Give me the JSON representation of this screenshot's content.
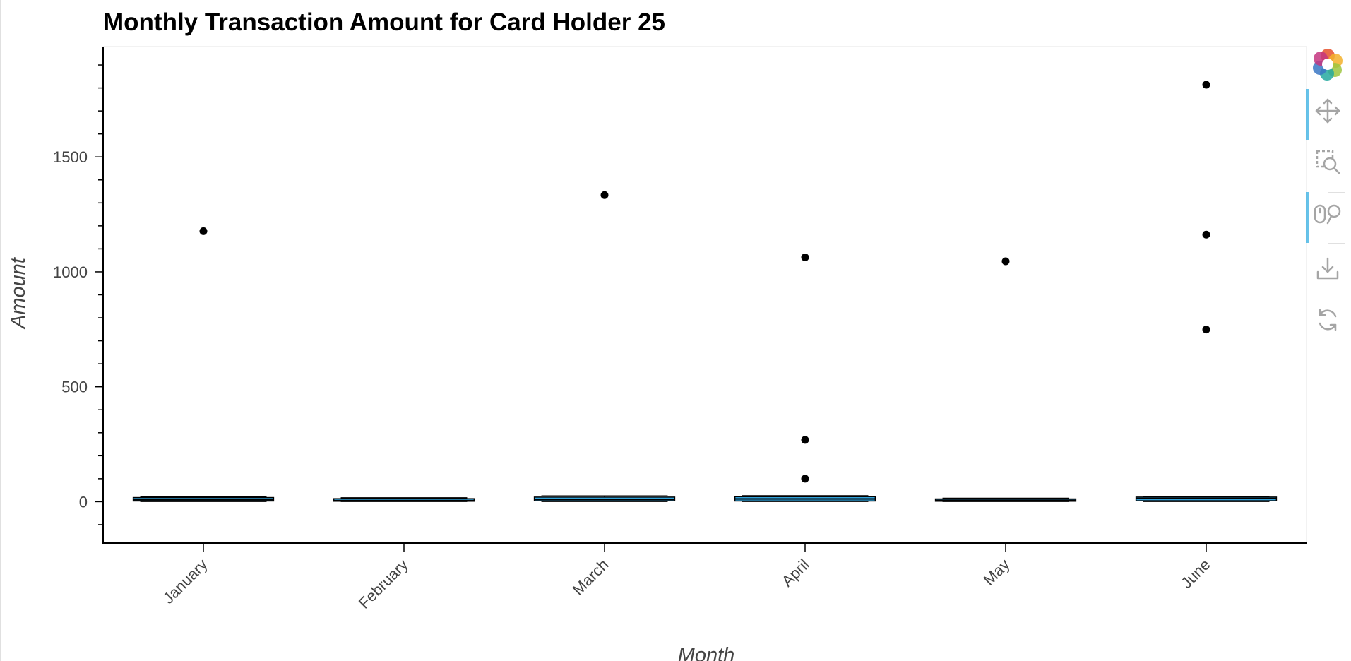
{
  "chart_data": {
    "type": "box",
    "title": "Monthly Transaction Amount for Card Holder 25",
    "xlabel": "Month",
    "ylabel": "Amount",
    "categories": [
      "January",
      "February",
      "March",
      "April",
      "May",
      "June"
    ],
    "boxes": [
      {
        "category": "January",
        "min": 1,
        "q1": 3,
        "median": 8,
        "q3": 18,
        "max": 22
      },
      {
        "category": "February",
        "min": 1,
        "q1": 2,
        "median": 5,
        "q3": 13,
        "max": 17
      },
      {
        "category": "March",
        "min": 1,
        "q1": 4,
        "median": 10,
        "q3": 20,
        "max": 25
      },
      {
        "category": "April",
        "min": 1,
        "q1": 3,
        "median": 12,
        "q3": 22,
        "max": 26
      },
      {
        "category": "May",
        "min": 1,
        "q1": 2,
        "median": 6,
        "q3": 12,
        "max": 15
      },
      {
        "category": "June",
        "min": 1,
        "q1": 4,
        "median": 14,
        "q3": 20,
        "max": 22
      }
    ],
    "outliers": [
      {
        "category": "January",
        "value": 1177
      },
      {
        "category": "March",
        "value": 1334
      },
      {
        "category": "April",
        "value": 1063
      },
      {
        "category": "April",
        "value": 269
      },
      {
        "category": "April",
        "value": 100
      },
      {
        "category": "May",
        "value": 1046
      },
      {
        "category": "June",
        "value": 1814
      },
      {
        "category": "June",
        "value": 1162
      },
      {
        "category": "June",
        "value": 749
      }
    ],
    "y_ticks": [
      0,
      500,
      1000,
      1500
    ],
    "y_minor_step": 100,
    "ylim": [
      -180,
      1980
    ],
    "grid": false,
    "colors": {
      "box_fill": "#30a2da",
      "box_line": "#000000",
      "outlier": "#000000",
      "axis": "#000000",
      "text": "#444444"
    }
  },
  "toolbar": {
    "tools": [
      {
        "name": "bokeh-logo",
        "icon": "bokeh-logo-icon"
      },
      {
        "name": "pan",
        "icon": "pan-icon",
        "active": true
      },
      {
        "name": "box-zoom",
        "icon": "box-zoom-icon",
        "active": false
      },
      {
        "name": "wheel-zoom",
        "icon": "wheel-zoom-icon",
        "active": true
      },
      {
        "name": "save",
        "icon": "save-icon",
        "active": false
      },
      {
        "name": "reset",
        "icon": "reset-icon",
        "active": false
      }
    ]
  }
}
